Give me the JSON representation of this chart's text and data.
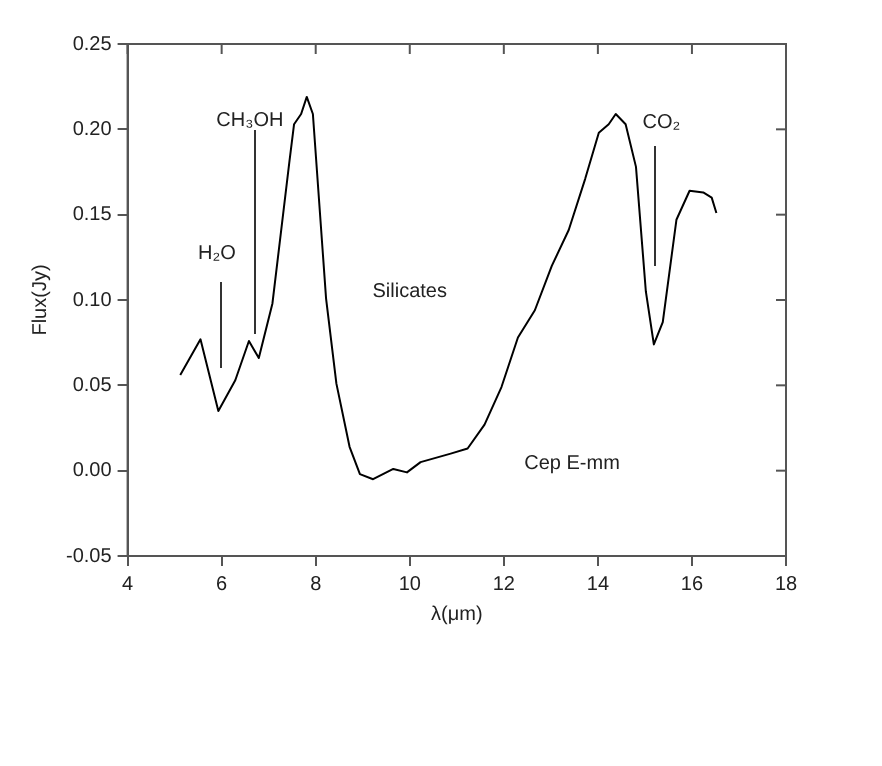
{
  "chart_data": {
    "type": "line",
    "xlabel": "λ(μm)",
    "ylabel": "Flux(Jy)",
    "x": [
      5.12,
      5.55,
      5.93,
      6.29,
      6.58,
      6.79,
      7.08,
      7.44,
      7.54,
      7.69,
      7.81,
      7.94,
      8.22,
      8.44,
      8.72,
      8.94,
      9.22,
      9.65,
      9.94,
      10.23,
      10.87,
      11.23,
      11.59,
      11.95,
      12.3,
      12.66,
      13.02,
      13.38,
      13.73,
      14.02,
      14.23,
      14.38,
      14.59,
      14.81,
      15.02,
      15.19,
      15.38,
      15.67,
      15.95,
      16.24,
      16.42,
      16.52
    ],
    "series": [
      {
        "color": "#000000",
        "values": [
          0.056,
          0.077,
          0.035,
          0.053,
          0.076,
          0.066,
          0.098,
          0.181,
          0.203,
          0.209,
          0.219,
          0.209,
          0.101,
          0.051,
          0.014,
          -0.002,
          -0.005,
          0.001,
          -0.001,
          0.005,
          0.01,
          0.013,
          0.027,
          0.049,
          0.078,
          0.094,
          0.12,
          0.141,
          0.171,
          0.198,
          0.203,
          0.209,
          0.203,
          0.178,
          0.105,
          0.074,
          0.087,
          0.147,
          0.164,
          0.163,
          0.16,
          0.151
        ]
      }
    ],
    "xlim": [
      4,
      18
    ],
    "xticks": [
      4,
      6,
      8,
      10,
      12,
      14,
      16,
      18
    ],
    "ylim": [
      -0.05,
      0.25
    ],
    "yticks": [
      {
        "value": -0.05,
        "label": "-0.05"
      },
      {
        "value": 0,
        "label": "0.00"
      },
      {
        "value": 0.05,
        "label": "0.05"
      },
      {
        "value": 0.1,
        "label": "0.10"
      },
      {
        "value": 0.15,
        "label": "0.15"
      },
      {
        "value": 0.2,
        "label": "0.20"
      },
      {
        "value": 0.25,
        "label": "0.25"
      }
    ],
    "annotations": [
      "H₂O",
      "CH₃OH",
      "CO₂",
      "Silicates",
      "Cep E-mm"
    ],
    "grid": false,
    "legend": false,
    "marker": "none",
    "line_style": "solid"
  }
}
